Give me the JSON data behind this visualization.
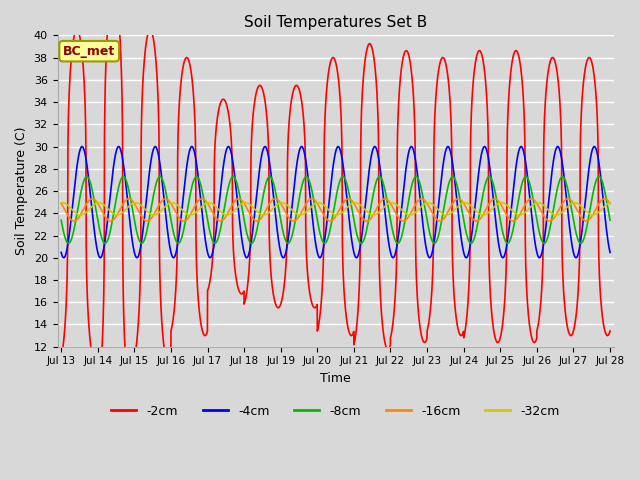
{
  "title": "Soil Temperatures Set B",
  "xlabel": "Time",
  "ylabel": "Soil Temperature (C)",
  "ylim": [
    12,
    40
  ],
  "yticks": [
    12,
    14,
    16,
    18,
    20,
    22,
    24,
    26,
    28,
    30,
    32,
    34,
    36,
    38,
    40
  ],
  "x_start_day": 13,
  "x_end_day": 28,
  "x_tick_days": [
    13,
    14,
    15,
    16,
    17,
    18,
    19,
    20,
    21,
    22,
    23,
    24,
    25,
    26,
    27,
    28
  ],
  "annotation_text": "BC_met",
  "bg_color": "#d8d8d8",
  "plot_bg_color": "#d8d8d8",
  "grid_color": "#ffffff",
  "linewidth": 1.2,
  "legend_colors": [
    "#ff0000",
    "#0000ff",
    "#00bb00",
    "#ff8800",
    "#cccc00"
  ],
  "legend_labels": [
    "-2cm",
    "-4cm",
    "-8cm",
    "-16cm",
    "-32cm"
  ],
  "series_params": [
    {
      "label": "-2cm",
      "color": "#ff0000",
      "mean": 25.5,
      "amplitude": 12.5,
      "sharpness": 3.0,
      "phase": 0.18,
      "amp_envelope": [
        1.2,
        1.5,
        1.2,
        1.0,
        0.7,
        0.8,
        0.8,
        1.0,
        1.1,
        1.05,
        1.0,
        1.05,
        1.05,
        1.0,
        1.0
      ]
    },
    {
      "label": "-4cm",
      "color": "#0000ff",
      "mean": 25.0,
      "amplitude": 5.0,
      "sharpness": 1.0,
      "phase": 0.32,
      "amp_envelope": [
        1.0,
        1.0,
        1.0,
        1.0,
        1.0,
        1.0,
        1.0,
        1.0,
        1.0,
        1.0,
        1.0,
        1.0,
        1.0,
        1.0,
        1.0
      ]
    },
    {
      "label": "-8cm",
      "color": "#00bb00",
      "mean": 24.3,
      "amplitude": 3.0,
      "sharpness": 1.0,
      "phase": 0.45,
      "amp_envelope": [
        1.0,
        1.0,
        1.0,
        1.0,
        1.0,
        1.0,
        1.0,
        1.0,
        1.0,
        1.0,
        1.0,
        1.0,
        1.0,
        1.0,
        1.0
      ]
    },
    {
      "label": "-16cm",
      "color": "#ff8800",
      "mean": 24.3,
      "amplitude": 1.0,
      "sharpness": 1.0,
      "phase": 0.6,
      "amp_envelope": [
        1.0,
        1.0,
        1.0,
        1.0,
        1.0,
        1.0,
        1.0,
        1.0,
        1.0,
        1.0,
        1.0,
        1.0,
        1.0,
        1.0,
        1.0
      ]
    },
    {
      "label": "-32cm",
      "color": "#cccc00",
      "mean": 24.4,
      "amplitude": 0.55,
      "sharpness": 1.0,
      "phase": 0.78,
      "amp_envelope": [
        1.0,
        1.0,
        1.0,
        1.0,
        1.0,
        1.0,
        1.0,
        1.0,
        1.0,
        1.0,
        1.0,
        1.0,
        1.0,
        1.0,
        1.0
      ]
    }
  ]
}
